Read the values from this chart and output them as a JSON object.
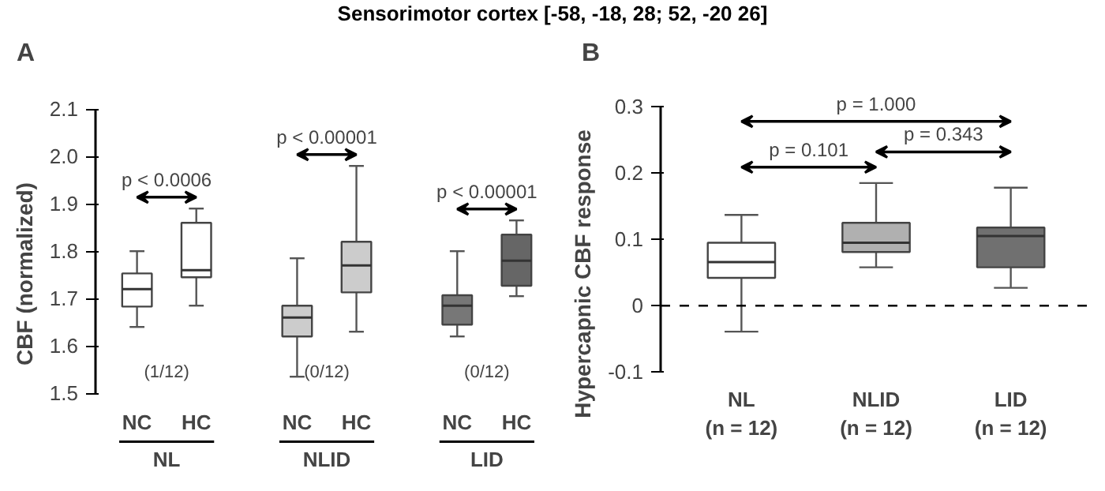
{
  "chart_data": [
    {
      "type": "box",
      "title": "Sensorimotor cortex [-58, -18, 28; 52, -20 26]",
      "ylabel": "CBF (normalized)",
      "categories": [
        "NC",
        "HC",
        "NC",
        "HC",
        "NC",
        "HC"
      ],
      "boxes": [
        {
          "low": 1.64,
          "q1": 1.683,
          "median": 1.72,
          "q3": 1.753,
          "high": 1.8
        },
        {
          "low": 1.685,
          "q1": 1.745,
          "median": 1.76,
          "q3": 1.86,
          "high": 1.89
        },
        {
          "low": 1.535,
          "q1": 1.62,
          "median": 1.66,
          "q3": 1.685,
          "high": 1.785
        },
        {
          "low": 1.63,
          "q1": 1.713,
          "median": 1.77,
          "q3": 1.82,
          "high": 1.98
        },
        {
          "low": 1.62,
          "q1": 1.645,
          "median": 1.685,
          "q3": 1.707,
          "high": 1.8
        },
        {
          "low": 1.705,
          "q1": 1.727,
          "median": 1.78,
          "q3": 1.835,
          "high": 1.865
        }
      ],
      "colors": [
        "#ffffff",
        "#ffffff",
        "#cccccc",
        "#cccccc",
        "#777777",
        "#666666"
      ],
      "ylim": [
        1.5,
        2.1
      ],
      "yticks": [
        1.5,
        1.6,
        1.7,
        1.8,
        1.9,
        {
          "value": 2.0,
          "label": "2.0"
        },
        2.1
      ],
      "grid": false,
      "annotations": [
        "A",
        "p < 0.0006",
        "p < 0.00001",
        "p < 0.00001",
        "(1/12)",
        "(0/12)",
        "(0/12)",
        "NL",
        "NLID",
        "LID"
      ]
    },
    {
      "type": "box",
      "ylabel": "Hypercapnic CBF response",
      "categories": [
        "NL\n(n = 12)",
        "NLID\n(n = 12)",
        "LID\n(n = 12)"
      ],
      "boxes": [
        {
          "low": -0.039,
          "q1": 0.042,
          "median": 0.066,
          "q3": 0.095,
          "high": 0.137
        },
        {
          "low": 0.058,
          "q1": 0.081,
          "median": 0.095,
          "q3": 0.125,
          "high": 0.185
        },
        {
          "low": 0.027,
          "q1": 0.058,
          "median": 0.105,
          "q3": 0.118,
          "high": 0.178
        }
      ],
      "colors": [
        "#ffffff",
        "#b0b0b0",
        "#707070"
      ],
      "ylim": [
        -0.1,
        0.3
      ],
      "yticks": [
        -0.1,
        0,
        0.1,
        0.2,
        0.3
      ],
      "grid": false,
      "ref_lines": [
        {
          "axis": "y",
          "value": 0,
          "line_style": "dashed",
          "color": "#000000"
        }
      ],
      "annotations": [
        "B",
        "p = 1.000",
        "p = 0.101",
        "p = 0.343"
      ]
    }
  ]
}
